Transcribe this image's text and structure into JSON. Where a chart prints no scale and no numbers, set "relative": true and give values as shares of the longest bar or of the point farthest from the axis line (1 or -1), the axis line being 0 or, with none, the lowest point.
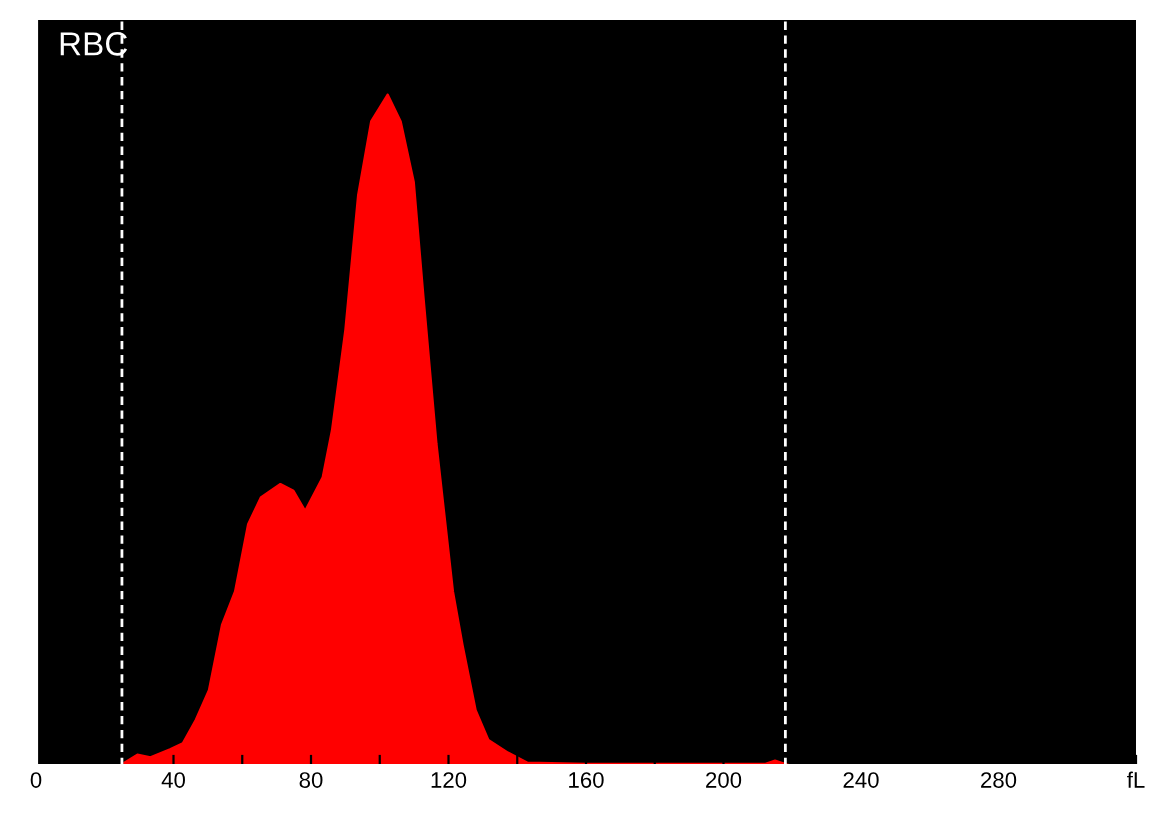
{
  "chart_data": {
    "type": "area",
    "title": "RBC",
    "relative": true,
    "color": "#ff0000",
    "x": [
      25.7,
      29.5,
      33.3,
      39,
      42.7,
      46.5,
      50.3,
      54.1,
      57.9,
      61.7,
      65.4,
      71.1,
      74.9,
      78.3,
      83.4,
      86.1,
      90,
      93.7,
      97.5,
      102.3,
      106.1,
      109.9,
      112.7,
      116.5,
      121.3,
      124.1,
      127.9,
      131.6,
      137.3,
      143,
      160,
      180,
      200,
      212,
      215,
      218,
      220
    ],
    "values": [
      0.005,
      0.017,
      0.013,
      0.025,
      0.034,
      0.069,
      0.113,
      0.21,
      0.26,
      0.36,
      0.4,
      0.42,
      0.41,
      0.38,
      0.43,
      0.5,
      0.65,
      0.85,
      0.96,
      1.0,
      0.96,
      0.87,
      0.7,
      0.48,
      0.26,
      0.18,
      0.083,
      0.039,
      0.02,
      0.005,
      0.003,
      0.003,
      0.003,
      0.003,
      0.008,
      0.003,
      0
    ],
    "xlim": [
      0,
      320
    ],
    "xticks": [
      0,
      {
        "value": 20,
        "label": null
      },
      40,
      {
        "value": 60,
        "label": null
      },
      80,
      {
        "value": 100,
        "label": null
      },
      120,
      {
        "value": 140,
        "label": null
      },
      160,
      {
        "value": 180,
        "label": null
      },
      200,
      {
        "value": 220,
        "label": null
      },
      240,
      {
        "value": 260,
        "label": null
      },
      280,
      {
        "value": 300,
        "label": null
      },
      {
        "value": 320,
        "label": "fL"
      }
    ],
    "ref_lines": [
      {
        "axis": "x",
        "value": 25,
        "color": "#ffffff",
        "line_style": "dashed"
      },
      {
        "axis": "x",
        "value": 218,
        "color": "#ffffff",
        "line_style": "dashed"
      }
    ],
    "tick_labels": "x",
    "grid": false
  }
}
